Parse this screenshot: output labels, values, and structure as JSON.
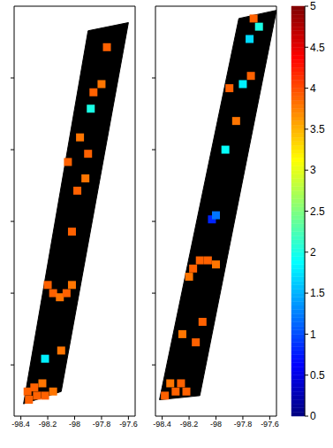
{
  "chart_data": [
    {
      "type": "heatmap",
      "xlim": [
        -98.45,
        -97.55
      ],
      "xticks": [
        -98.4,
        -98.2,
        -98,
        -97.8,
        -97.6
      ],
      "ylim": [
        30,
        40
      ],
      "yticks": [
        31.25,
        33,
        34.75,
        36.5,
        38.25
      ],
      "tick_labels": "x",
      "color": "#000000",
      "swath": [
        [
          -98.38,
          30.3
        ],
        [
          -98.1,
          30.6
        ],
        [
          -97.6,
          39.6
        ],
        [
          -97.9,
          39.4
        ]
      ],
      "cells": [
        [
          -98.34,
          30.4,
          3.9
        ],
        [
          -98.28,
          30.5,
          3.9
        ],
        [
          -98.22,
          30.5,
          3.9
        ],
        [
          -98.16,
          30.6,
          3.8
        ],
        [
          -98.3,
          30.7,
          3.9
        ],
        [
          -98.24,
          30.8,
          3.8
        ],
        [
          -98.35,
          30.6,
          3.9
        ],
        [
          -98.2,
          33.2,
          3.9
        ],
        [
          -98.16,
          33.0,
          3.9
        ],
        [
          -98.11,
          32.9,
          3.8
        ],
        [
          -98.06,
          33.0,
          3.9
        ],
        [
          -98.02,
          33.2,
          3.8
        ],
        [
          -98.22,
          31.4,
          1.8
        ],
        [
          -98.1,
          31.6,
          3.8
        ],
        [
          -97.98,
          35.5,
          3.9
        ],
        [
          -97.92,
          35.8,
          3.8
        ],
        [
          -98.05,
          36.2,
          3.9
        ],
        [
          -97.9,
          36.4,
          3.9
        ],
        [
          -97.96,
          36.8,
          3.8
        ],
        [
          -97.86,
          37.9,
          3.9
        ],
        [
          -97.8,
          38.1,
          3.8
        ],
        [
          -97.88,
          37.5,
          2.0
        ],
        [
          -98.02,
          34.5,
          3.9
        ],
        [
          -97.76,
          39.0,
          3.9
        ]
      ]
    },
    {
      "type": "heatmap",
      "xlim": [
        -98.45,
        -97.55
      ],
      "xticks": [
        -98.4,
        -98.2,
        -98,
        -97.8,
        -97.6
      ],
      "ylim": [
        30,
        40
      ],
      "yticks": [
        31.25,
        33,
        34.75,
        36.5,
        38.25
      ],
      "tick_labels": "x",
      "color": "#000000",
      "swath": [
        [
          -98.42,
          30.4
        ],
        [
          -98.12,
          30.5
        ],
        [
          -97.55,
          39.9
        ],
        [
          -97.83,
          39.7
        ]
      ],
      "cells": [
        [
          -98.38,
          30.5,
          3.9
        ],
        [
          -98.3,
          30.6,
          3.9
        ],
        [
          -98.22,
          30.6,
          3.9
        ],
        [
          -98.34,
          30.8,
          3.8
        ],
        [
          -98.26,
          30.8,
          3.9
        ],
        [
          -98.15,
          31.8,
          3.9
        ],
        [
          -98.25,
          32.0,
          3.8
        ],
        [
          -98.1,
          32.3,
          3.9
        ],
        [
          -98.17,
          33.6,
          3.9
        ],
        [
          -98.12,
          33.8,
          3.9
        ],
        [
          -98.06,
          33.8,
          3.9
        ],
        [
          -98.0,
          33.7,
          3.8
        ],
        [
          -98.2,
          33.4,
          3.8
        ],
        [
          -98.03,
          34.8,
          0.8
        ],
        [
          -98.0,
          34.9,
          1.2
        ],
        [
          -97.93,
          36.5,
          1.9
        ],
        [
          -97.85,
          37.2,
          3.8
        ],
        [
          -97.9,
          38.0,
          3.9
        ],
        [
          -97.8,
          38.1,
          1.8
        ],
        [
          -97.74,
          38.3,
          3.9
        ],
        [
          -97.75,
          39.2,
          1.7
        ],
        [
          -97.68,
          39.5,
          2.0
        ],
        [
          -97.72,
          39.7,
          3.9
        ]
      ]
    }
  ],
  "colorbar": {
    "range": [
      0,
      5
    ],
    "ticks": [
      0,
      0.5,
      1,
      1.5,
      2,
      2.5,
      3,
      3.5,
      4,
      4.5,
      5
    ]
  }
}
